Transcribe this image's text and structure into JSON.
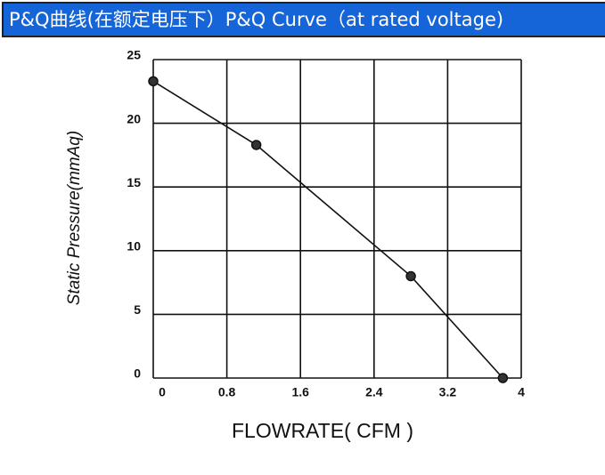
{
  "chart_data": {
    "type": "line",
    "title": "P&Q曲线(在额定电压下）P&Q Curve（at rated voltage)",
    "x_label": "FLOWRATE( CFM )",
    "y_label": "Static Pressure(mmAq)",
    "x": [
      0,
      1.12,
      2.8,
      3.8
    ],
    "series": [
      {
        "values": [
          23.3,
          18.3,
          8,
          0
        ],
        "color": "#111111"
      }
    ],
    "xlim": [
      0,
      4
    ],
    "xticks": [
      0,
      0.8,
      1.6,
      2.4,
      3.2,
      4
    ],
    "ylim": [
      0,
      25
    ],
    "yticks": [
      0,
      5,
      10,
      15,
      20,
      25
    ],
    "grid": true
  }
}
